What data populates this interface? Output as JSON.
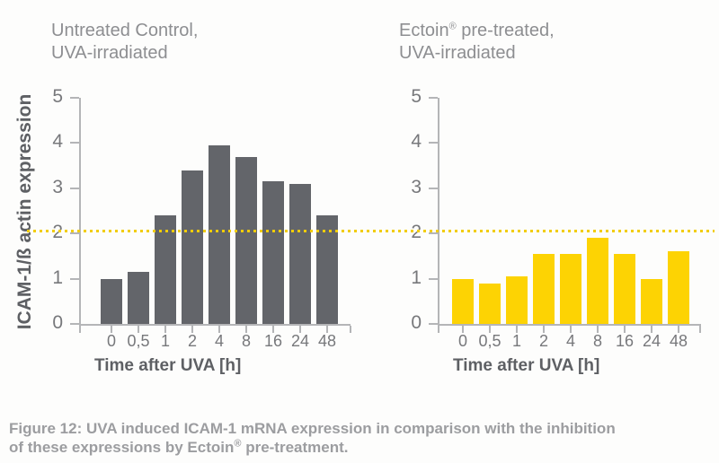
{
  "figure": {
    "caption_line1": "Figure 12: UVA induced ICAM-1 mRNA expression in comparison with the inhibition",
    "caption_line2_pre": "of these expressions by Ectoin",
    "caption_line2_sup": "®",
    "caption_line2_post": " pre-treatment."
  },
  "colors": {
    "bar_gray": "#63656a",
    "bar_yellow": "#fdd303",
    "reference_yellow": "#f2cd00",
    "axis_gray": "#b4b5b7",
    "text_gray": "#77787b",
    "title_gray": "#8d8e91",
    "caption_gray": "#9c9da0"
  },
  "chart_data": [
    {
      "type": "bar",
      "title_line1": "Untreated Control,",
      "title_line2": "UVA-irradiated",
      "categories": [
        "0",
        "0,5",
        "1",
        "2",
        "4",
        "8",
        "16",
        "24",
        "48"
      ],
      "values": [
        1.0,
        1.15,
        2.4,
        3.4,
        3.95,
        3.7,
        3.15,
        3.1,
        2.4
      ],
      "ylabel": "ICAM-1/ß actin expression",
      "xlabel": "Time after UVA [h]",
      "ylim": [
        0,
        5
      ],
      "yticks": [
        0,
        1,
        2,
        3,
        4,
        5
      ],
      "bar_color": "#63656a",
      "reference_line": 2.07,
      "reference_line_color": "#f2cd00",
      "grid": false,
      "legend": "none"
    },
    {
      "type": "bar",
      "title_line1_pre": "Ectoin",
      "title_line1_sup": "®",
      "title_line1_post": " pre-treated,",
      "title_line2": "UVA-irradiated",
      "categories": [
        "0",
        "0,5",
        "1",
        "2",
        "4",
        "8",
        "16",
        "24",
        "48"
      ],
      "values": [
        1.0,
        0.9,
        1.05,
        1.55,
        1.55,
        1.9,
        1.55,
        1.0,
        1.6
      ],
      "ylabel": "",
      "xlabel": "Time after UVA [h]",
      "ylim": [
        0,
        5
      ],
      "yticks": [
        0,
        1,
        2,
        3,
        4,
        5
      ],
      "bar_color": "#fdd303",
      "reference_line": 2.07,
      "reference_line_color": "#f2cd00",
      "grid": false,
      "legend": "none"
    }
  ]
}
